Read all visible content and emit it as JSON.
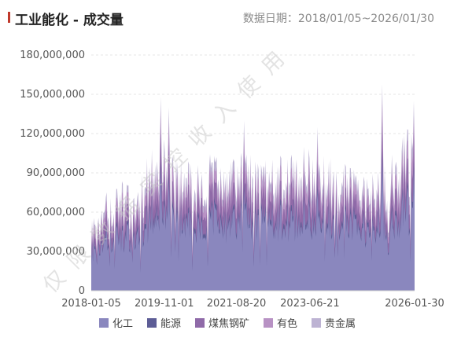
{
  "header": {
    "title": "工业能化 - 成交量",
    "subtitle": "数据日期：2018/01/05~2026/01/30"
  },
  "watermark": "仅限数据实控收入使用",
  "chart_data": {
    "type": "area",
    "stacked": true,
    "title": "工业能化 - 成交量",
    "ylim": [
      0,
      180000000
    ],
    "yticks": [
      0,
      30000000,
      60000000,
      90000000,
      120000000,
      150000000,
      180000000
    ],
    "ytick_labels": [
      "0",
      "30,000,000",
      "60,000,000",
      "90,000,000",
      "120,000,000",
      "150,000,000",
      "180,000,000"
    ],
    "xtick_labels": [
      "2018-01-05",
      "2019-11-01",
      "2021-08-20",
      "2023-06-21",
      "2026-01-30"
    ],
    "x_range": [
      "2018-01-05",
      "2026-01-30"
    ],
    "grid": true,
    "legend_position": "bottom",
    "anchors": [
      {
        "date": "2018-01-05",
        "total": 45000000
      },
      {
        "date": "2018-04-01",
        "total": 60000000
      },
      {
        "date": "2018-08-01",
        "total": 70000000
      },
      {
        "date": "2018-12-01",
        "total": 65000000
      },
      {
        "date": "2019-04-01",
        "total": 70000000
      },
      {
        "date": "2019-08-01",
        "total": 95000000
      },
      {
        "date": "2019-12-01",
        "total": 95000000
      },
      {
        "date": "2020-04-01",
        "total": 85000000
      },
      {
        "date": "2020-08-01",
        "total": 75000000
      },
      {
        "date": "2021-01-01",
        "total": 85000000
      },
      {
        "date": "2021-05-01",
        "total": 80000000
      },
      {
        "date": "2021-09-01",
        "total": 90000000
      },
      {
        "date": "2022-01-01",
        "total": 85000000
      },
      {
        "date": "2022-06-01",
        "total": 80000000
      },
      {
        "date": "2022-12-01",
        "total": 85000000
      },
      {
        "date": "2023-05-01",
        "total": 90000000
      },
      {
        "date": "2023-10-01",
        "total": 85000000
      },
      {
        "date": "2024-03-01",
        "total": 80000000
      },
      {
        "date": "2024-08-01",
        "total": 75000000
      },
      {
        "date": "2025-01-01",
        "total": 75000000
      },
      {
        "date": "2025-06-01",
        "total": 80000000
      },
      {
        "date": "2025-10-01",
        "total": 95000000
      },
      {
        "date": "2026-01-30",
        "total": 105000000
      }
    ],
    "peaks": [
      {
        "date": "2019-10-01",
        "value": 148000000
      },
      {
        "date": "2019-12-15",
        "value": 140000000
      },
      {
        "date": "2021-11-01",
        "value": 130000000
      },
      {
        "date": "2023-09-01",
        "value": 125000000
      },
      {
        "date": "2025-04-07",
        "value": 158000000
      },
      {
        "date": "2026-01-20",
        "value": 145000000
      }
    ],
    "series": [
      {
        "name": "化工",
        "share": 0.62,
        "color": "#8a87be"
      },
      {
        "name": "能源",
        "share": 0.04,
        "color": "#5d5d96"
      },
      {
        "name": "煤焦钢矿",
        "share": 0.16,
        "color": "#8f6aa8"
      },
      {
        "name": "有色",
        "share": 0.1,
        "color": "#b892c4"
      },
      {
        "name": "贵金属",
        "share": 0.08,
        "color": "#bdb3d3"
      }
    ]
  }
}
